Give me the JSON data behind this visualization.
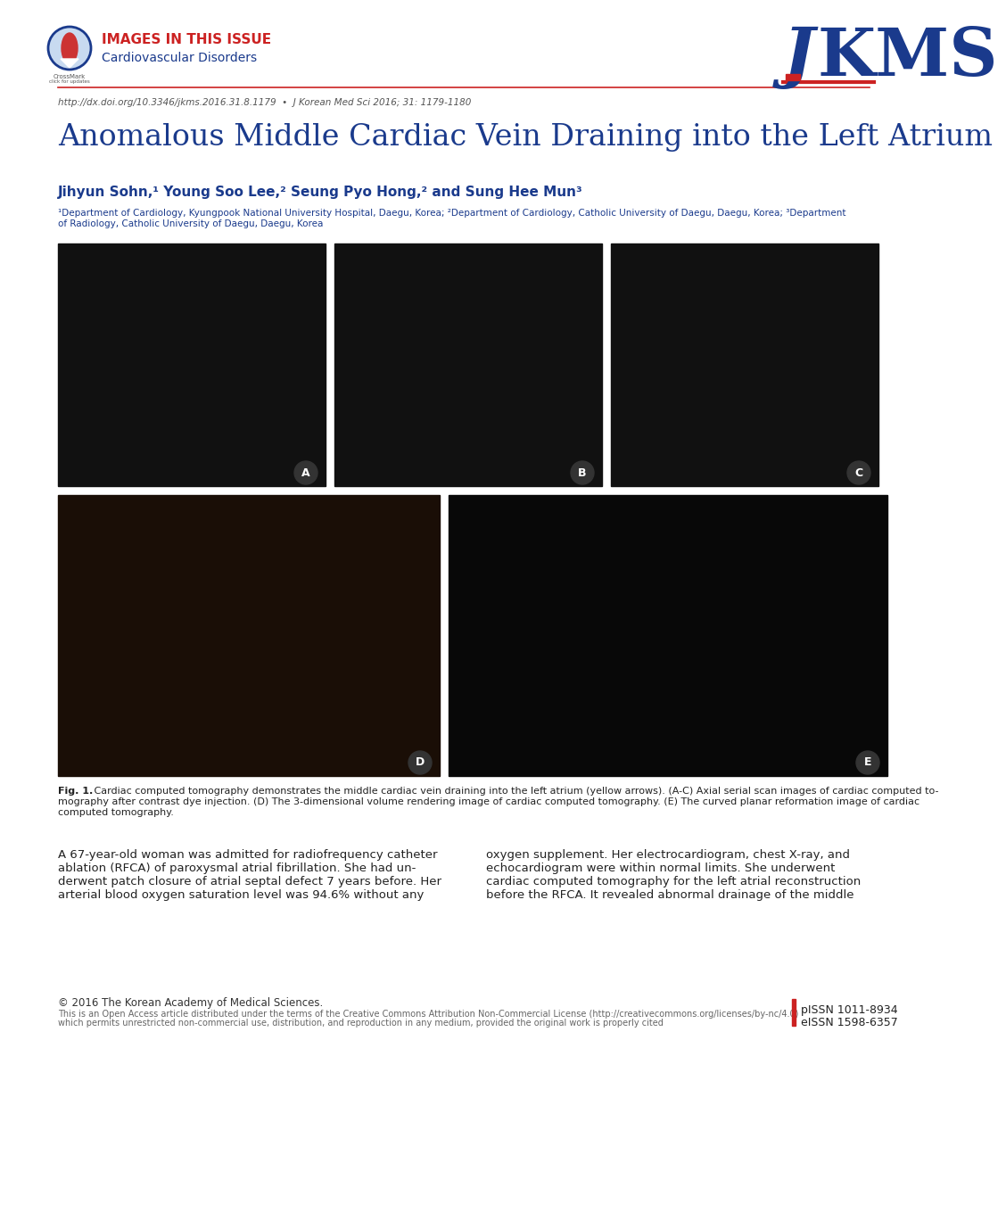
{
  "page_width": 10.2,
  "page_height": 13.59,
  "bg_color": "#ffffff",
  "header_images_text": "IMAGES IN THIS ISSUE",
  "header_sub_text": "Cardiovascular Disorders",
  "header_images_color": "#cc2222",
  "header_sub_color": "#1a3a8c",
  "jkms_color": "#1a3a8c",
  "doi_text": "http://dx.doi.org/10.3346/jkms.2016.31.8.1179  •  J Korean Med Sci 2016; 31: 1179-1180",
  "doi_color": "#555555",
  "title_text": "Anomalous Middle Cardiac Vein Draining into the Left Atrium",
  "title_color": "#1a3a8c",
  "authors_text": "Jihyun Sohn,¹ Young Soo Lee,² Seung Pyo Hong,² and Sung Hee Mun³",
  "authors_color": "#1a3a8c",
  "affiliation_line1": "¹Department of Cardiology, Kyungpook National University Hospital, Daegu, Korea; ²Department of Cardiology, Catholic University of Daegu, Daegu, Korea; ³Department",
  "affiliation_line2": "of Radiology, Catholic University of Daegu, Daegu, Korea",
  "affiliation_color": "#1a3a8c",
  "fig_bold": "Fig. 1.",
  "fig_caption_line1": " Cardiac computed tomography demonstrates the middle cardiac vein draining into the left atrium (yellow arrows). (A-C) Axial serial scan images of cardiac computed to-",
  "fig_caption_line2": "mography after contrast dye injection. (D) The 3-dimensional volume rendering image of cardiac computed tomography. (E) The curved planar reformation image of cardiac",
  "fig_caption_line3": "computed tomography.",
  "body_left_lines": [
    "A 67-year-old woman was admitted for radiofrequency catheter",
    "ablation (RFCA) of paroxysmal atrial fibrillation. She had un-",
    "derwent patch closure of atrial septal defect 7 years before. Her",
    "arterial blood oxygen saturation level was 94.6% without any"
  ],
  "body_right_lines": [
    "oxygen supplement. Her electrocardiogram, chest X-ray, and",
    "echocardiogram were within normal limits. She underwent",
    "cardiac computed tomography for the left atrial reconstruction",
    "before the RFCA. It revealed abnormal drainage of the middle"
  ],
  "copyright_line1": "© 2016 The Korean Academy of Medical Sciences.",
  "copyright_line2": "This is an Open Access article distributed under the terms of the Creative Commons Attribution Non-Commercial License (http://creativecommons.org/licenses/by-nc/4.0)",
  "copyright_line3": "which permits unrestricted non-commercial use, distribution, and reproduction in any medium, provided the original work is properly cited",
  "issn_line1": "pISSN 1011-8934",
  "issn_line2": "eISSN 1598-6357",
  "red_bar_color": "#cc2222"
}
